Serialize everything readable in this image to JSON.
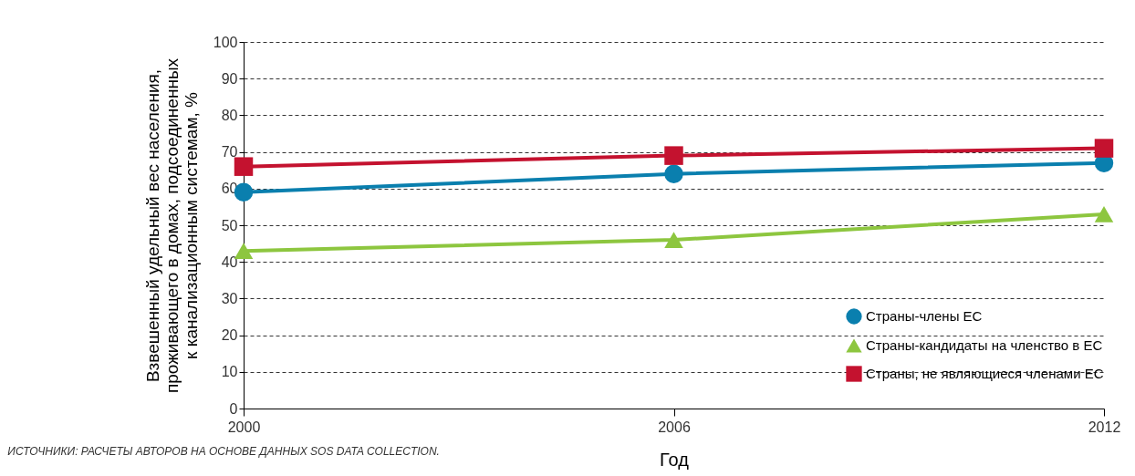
{
  "chart_data": {
    "type": "line",
    "xlabel": "Год",
    "ylabel": "Взвешенный удельный вес населения,\nпроживающего в домах, подсоединенных\nк канализационным системам, %",
    "x": [
      2000,
      2006,
      2012
    ],
    "xlim": [
      2000,
      2012
    ],
    "xticks": [
      2000,
      2006,
      2012
    ],
    "ylim": [
      0,
      100
    ],
    "yticks": [
      0,
      10,
      20,
      30,
      40,
      50,
      60,
      70,
      80,
      90,
      100
    ],
    "grid": "y",
    "legend": "bottom right",
    "series": [
      {
        "name": "Страны-члены ЕС",
        "color": "#0a7fae",
        "marker": "circle",
        "values": [
          59,
          64,
          67
        ]
      },
      {
        "name": "Страны-кандидаты на членство в ЕС",
        "color": "#8dc63f",
        "marker": "triangle",
        "values": [
          43,
          46,
          53
        ]
      },
      {
        "name": "Страны, не являющиеся членами ЕС",
        "color": "#c4122f",
        "marker": "square",
        "values": [
          66,
          69,
          71
        ]
      }
    ],
    "annotations": [
      "ИСТОЧНИКИ: РАСЧЕТЫ АВТОРОВ НА ОСНОВЕ ДАННЫХ SOS DATA COLLECTION."
    ]
  }
}
